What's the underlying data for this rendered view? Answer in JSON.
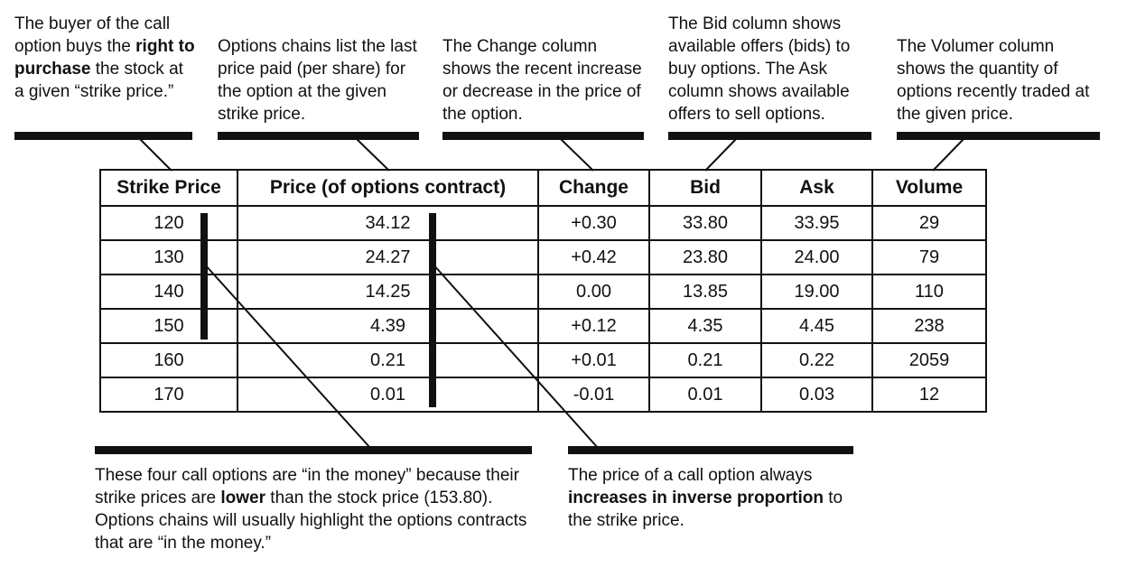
{
  "annotations": {
    "buyer": {
      "pre": "The buyer of the call option buys the",
      "bold": "right to purchase",
      "post": "the stock at a given “strike price.”"
    },
    "price": {
      "text": "Options chains list the last price paid (per share) for the option at the given strike price."
    },
    "change": {
      "text": "The Change column shows the recent increase or decrease in the price of the option."
    },
    "bidask": {
      "text": "The Bid column shows available offers (bids) to buy options. The Ask column shows available offers to sell options."
    },
    "volume": {
      "text": "The Volumer column shows the quantity of options recently traded at the given price."
    },
    "in_money": {
      "pre": "These four call options are “in the money” because their strike prices are",
      "bold": "lower",
      "post": "than the stock price (153.80). Options chains will usually highlight the options contracts that are “in the money.”"
    },
    "inverse": {
      "pre": "The price of a call option always",
      "bold": "increases in inverse proportion",
      "post": "to the strike price."
    }
  },
  "table": {
    "headers": [
      "Strike Price",
      "Price (of options contract)",
      "Change",
      "Bid",
      "Ask",
      "Volume"
    ],
    "rows": [
      [
        "120",
        "34.12",
        "+0.30",
        "33.80",
        "33.95",
        "29"
      ],
      [
        "130",
        "24.27",
        "+0.42",
        "23.80",
        "24.00",
        "79"
      ],
      [
        "140",
        "14.25",
        "0.00",
        "13.85",
        "19.00",
        "110"
      ],
      [
        "150",
        "4.39",
        "+0.12",
        "4.35",
        "4.45",
        "238"
      ],
      [
        "160",
        "0.21",
        "+0.01",
        "0.21",
        "0.22",
        "2059"
      ],
      [
        "170",
        "0.01",
        "-0.01",
        "0.01",
        "0.03",
        "12"
      ]
    ]
  }
}
